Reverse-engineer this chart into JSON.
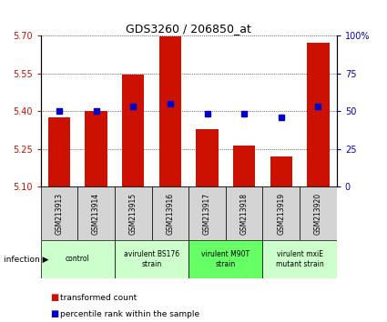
{
  "title": "GDS3260 / 206850_at",
  "samples": [
    "GSM213913",
    "GSM213914",
    "GSM213915",
    "GSM213916",
    "GSM213917",
    "GSM213918",
    "GSM213919",
    "GSM213920"
  ],
  "bar_values": [
    5.375,
    5.4,
    5.545,
    5.695,
    5.33,
    5.265,
    5.22,
    5.67
  ],
  "percentile_values": [
    50,
    50,
    53,
    55,
    48,
    48,
    46,
    53
  ],
  "ylim_left": [
    5.1,
    5.7
  ],
  "ylim_right": [
    0,
    100
  ],
  "yticks_left": [
    5.1,
    5.25,
    5.4,
    5.55,
    5.7
  ],
  "yticks_right": [
    0,
    25,
    50,
    75,
    100
  ],
  "bar_color": "#cc1100",
  "dot_color": "#0000cc",
  "bar_width": 0.6,
  "group_boundaries": [
    {
      "label": "control",
      "start": 0,
      "end": 1,
      "color": "#ccffcc"
    },
    {
      "label": "avirulent BS176\nstrain",
      "start": 2,
      "end": 3,
      "color": "#ccffcc"
    },
    {
      "label": "virulent M90T\nstrain",
      "start": 4,
      "end": 5,
      "color": "#66ff66"
    },
    {
      "label": "virulent mxiE\nmutant strain",
      "start": 6,
      "end": 7,
      "color": "#ccffcc"
    }
  ],
  "sample_box_color": "#d4d4d4",
  "infection_label": "infection ▶",
  "legend_red": "transformed count",
  "legend_blue": "percentile rank within the sample",
  "background_color": "#ffffff",
  "left_tick_color": "#cc1100",
  "right_tick_color": "#0000cc"
}
